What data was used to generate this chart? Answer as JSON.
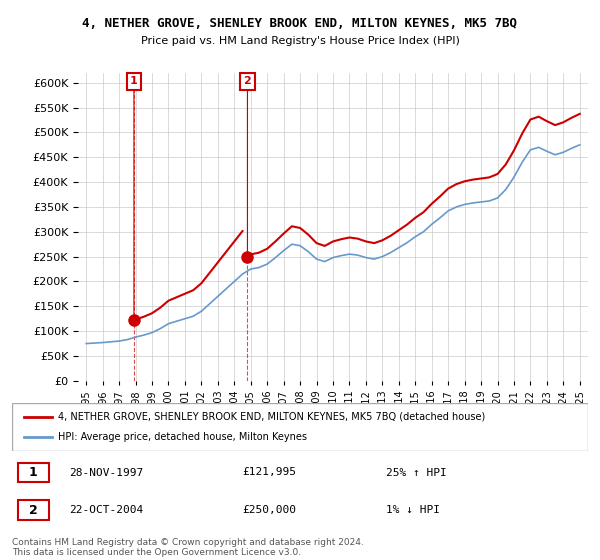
{
  "title": "4, NETHER GROVE, SHENLEY BROOK END, MILTON KEYNES, MK5 7BQ",
  "subtitle": "Price paid vs. HM Land Registry's House Price Index (HPI)",
  "legend_line1": "4, NETHER GROVE, SHENLEY BROOK END, MILTON KEYNES, MK5 7BQ (detached house)",
  "legend_line2": "HPI: Average price, detached house, Milton Keynes",
  "sale1_label": "1",
  "sale1_date": "28-NOV-1997",
  "sale1_price": "£121,995",
  "sale1_hpi": "25% ↑ HPI",
  "sale2_label": "2",
  "sale2_date": "22-OCT-2004",
  "sale2_price": "£250,000",
  "sale2_hpi": "1% ↓ HPI",
  "footer": "Contains HM Land Registry data © Crown copyright and database right 2024.\nThis data is licensed under the Open Government Licence v3.0.",
  "ylim": [
    0,
    620000
  ],
  "yticks": [
    0,
    50000,
    100000,
    150000,
    200000,
    250000,
    300000,
    350000,
    400000,
    450000,
    500000,
    550000,
    600000
  ],
  "sale1_year": 1997.9,
  "sale1_value": 121995,
  "sale2_year": 2004.8,
  "sale2_value": 250000,
  "red_color": "#cc0000",
  "blue_color": "#6699cc",
  "annotation_color": "#cc0000",
  "background_color": "#ffffff",
  "grid_color": "#cccccc"
}
